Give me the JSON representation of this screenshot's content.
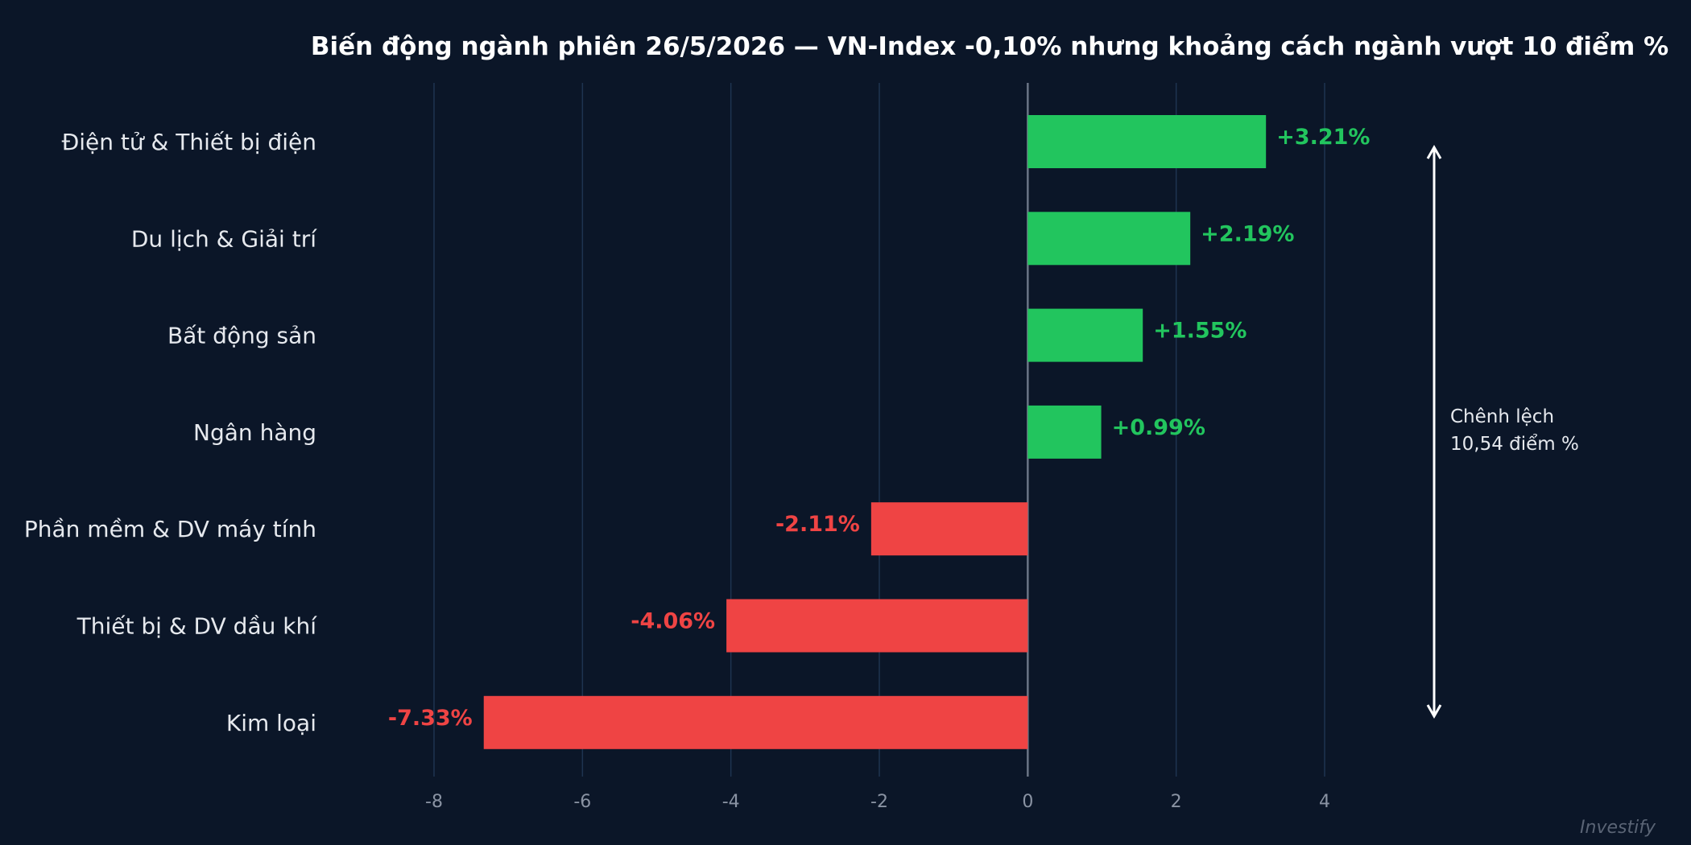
{
  "chart_data": {
    "type": "bar",
    "orientation": "horizontal",
    "title": "Biến động ngành phiên 26/5/2026 — VN-Index -0,10% nhưng khoảng cách ngành vượt 10 điểm %",
    "categories": [
      "Điện tử & Thiết bị điện",
      "Du lịch & Giải trí",
      "Bất động sản",
      "Ngân hàng",
      "Phần mềm & DV máy tính",
      "Thiết bị & DV dầu khí",
      "Kim loại"
    ],
    "values": [
      3.21,
      2.19,
      1.55,
      0.99,
      -2.11,
      -4.06,
      -7.33
    ],
    "value_labels": [
      "+3.21%",
      "+2.19%",
      "+1.55%",
      "+0.99%",
      "-2.11%",
      "-4.06%",
      "-7.33%"
    ],
    "xlim": [
      -8,
      4
    ],
    "xticks": [
      -8,
      -6,
      -4,
      -2,
      0,
      2,
      4
    ],
    "xtick_labels": [
      "-8",
      "-6",
      "-4",
      "-2",
      "0",
      "2",
      "4"
    ],
    "xlabel": "",
    "ylabel": "",
    "grid": true,
    "colors": {
      "positive": "#22c55e",
      "negative": "#ef4444",
      "background": "#0b1628",
      "grid": "#1e3350",
      "zero_line": "#6b7585"
    },
    "annotation": {
      "line1": "Chênh lệch",
      "line2": "10,54 điểm %"
    }
  },
  "watermark": "Investify"
}
